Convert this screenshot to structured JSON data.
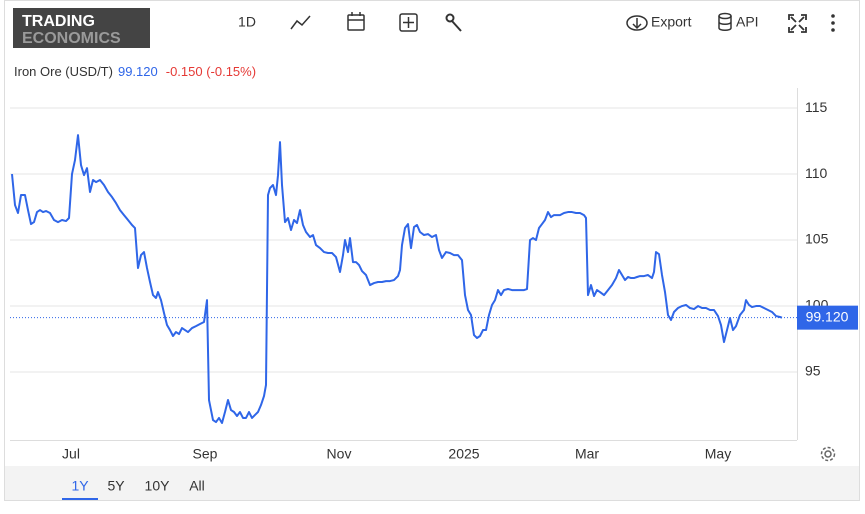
{
  "toolbar": {
    "logo_top": "TRADING",
    "logo_bottom": "ECONOMICS",
    "interval": "1D",
    "export": "Export",
    "api": "API"
  },
  "ranges": [
    "1Y",
    "5Y",
    "10Y",
    "All"
  ],
  "header": {
    "name": "Iron Ore (USD/T)",
    "price": "99.120",
    "change": "-0.150 (-0.15%)"
  },
  "chart_data": {
    "type": "line",
    "color": "#2f66e8",
    "last_label": "99.120",
    "xlim": [
      0,
      393.5
    ],
    "ylim": [
      89.85,
      116.52
    ],
    "yticks": [
      95,
      100,
      105,
      110,
      115
    ],
    "grid": true,
    "xticks": [
      {
        "value": 30.5,
        "label": "Jul"
      },
      {
        "value": 97.5,
        "label": "Sep"
      },
      {
        "value": 164.5,
        "label": "Nov"
      },
      {
        "value": 227,
        "label": "2025"
      },
      {
        "value": 288.5,
        "label": "Mar"
      },
      {
        "value": 354,
        "label": "May"
      }
    ],
    "x": [
      1,
      2.5,
      4,
      5.5,
      7.5,
      9,
      10.5,
      12,
      13.5,
      15,
      16.5,
      18,
      20,
      22,
      24,
      26,
      28,
      29.5,
      31,
      32.5,
      34,
      35.5,
      37,
      38.5,
      40,
      41.5,
      43,
      45,
      47,
      49,
      51,
      53,
      55,
      57,
      59,
      61,
      62.5,
      64,
      65.5,
      67,
      68.5,
      70,
      71.5,
      73,
      74,
      75.5,
      77,
      78.5,
      80,
      81.5,
      83,
      84.5,
      86,
      87.5,
      89,
      91,
      93,
      95,
      97,
      98.5,
      99.5,
      100.5,
      101.5,
      103,
      104.5,
      106,
      107.5,
      109,
      110.5,
      112,
      113.5,
      115,
      116.5,
      118,
      119.5,
      121,
      122.5,
      124,
      125.5,
      127,
      128,
      129,
      130,
      131.5,
      133,
      134,
      135,
      136,
      137.5,
      139,
      140.5,
      142,
      143.5,
      145,
      146.5,
      148,
      150,
      151.5,
      153,
      155,
      157,
      159,
      161,
      163,
      165,
      166.5,
      167.5,
      169,
      170,
      171.5,
      173,
      174.5,
      176,
      178,
      180,
      182,
      184,
      186,
      188,
      190,
      192,
      194,
      195,
      196,
      197.5,
      199,
      200.5,
      202,
      203.5,
      205,
      207,
      209,
      211,
      213,
      214.5,
      216,
      218,
      220,
      222,
      224,
      226,
      227.5,
      229,
      230.5,
      232,
      233.5,
      235,
      236.5,
      238,
      239.5,
      241,
      242.5,
      244,
      245.5,
      247,
      249,
      251,
      253,
      255,
      257,
      258.5,
      260,
      261.5,
      263,
      264.5,
      266,
      267.5,
      269,
      270.5,
      272,
      273.5,
      275,
      277,
      279,
      281,
      283,
      285,
      287,
      288,
      289,
      290.5,
      292,
      293.5,
      295,
      297,
      299,
      301,
      303,
      304.5,
      306,
      307.5,
      309,
      310.5,
      312,
      313.5,
      315,
      317,
      319,
      321,
      322,
      323,
      324.5,
      326,
      327.5,
      329,
      330.5,
      332,
      334,
      336,
      338,
      340,
      342,
      344,
      346,
      348,
      350,
      352,
      354,
      355.5,
      357,
      358.5,
      360,
      361.5,
      363,
      365,
      367,
      368,
      369.5,
      371,
      373,
      375,
      377,
      379,
      381,
      383,
      385,
      386
    ],
    "values": [
      110,
      107.65,
      107.05,
      108.41,
      108.41,
      107.27,
      106.21,
      106.36,
      107.12,
      107.27,
      107.12,
      107.2,
      107.05,
      106.52,
      106.36,
      106.52,
      106.44,
      106.67,
      110,
      111.06,
      112.95,
      110.68,
      109.92,
      110.45,
      108.64,
      109.55,
      109.39,
      109.55,
      109.17,
      108.64,
      108.26,
      107.8,
      107.27,
      106.89,
      106.52,
      106.14,
      105.91,
      102.88,
      103.86,
      104.09,
      102.88,
      101.82,
      100.83,
      100.61,
      101.06,
      100.45,
      99.47,
      98.56,
      98.18,
      97.73,
      98.03,
      97.88,
      98.33,
      98.18,
      98.03,
      98.33,
      98.48,
      98.64,
      98.79,
      100.45,
      92.88,
      92.12,
      91.36,
      91.21,
      91.52,
      91.14,
      91.97,
      92.88,
      92.12,
      91.97,
      91.67,
      91.97,
      91.52,
      91.52,
      91.97,
      91.52,
      91.75,
      91.97,
      92.5,
      93.18,
      94.02,
      108.41,
      108.94,
      109.17,
      108.41,
      109.92,
      112.42,
      109.17,
      106.36,
      106.67,
      105.76,
      106.52,
      106.29,
      107.27,
      106.14,
      105.61,
      105.23,
      105.38,
      104.62,
      104.39,
      104.09,
      104.02,
      104.02,
      103.71,
      102.58,
      103.86,
      105,
      104.09,
      105.15,
      103.33,
      103.33,
      103.11,
      102.65,
      102.35,
      101.59,
      101.74,
      101.82,
      101.82,
      101.89,
      101.89,
      101.97,
      102.27,
      102.73,
      104.62,
      105.91,
      106.21,
      104.39,
      105.98,
      106.14,
      105.61,
      105.38,
      105.45,
      105.23,
      105.38,
      104.24,
      103.64,
      104.09,
      104.02,
      103.86,
      103.86,
      103.48,
      100.83,
      99.7,
      99.32,
      97.8,
      97.58,
      97.73,
      98.18,
      98.18,
      99.32,
      100.08,
      100.45,
      101.21,
      100.83,
      101.21,
      101.29,
      101.21,
      101.21,
      101.21,
      101.21,
      101.29,
      105,
      105.15,
      105,
      105.91,
      106.21,
      106.52,
      107.12,
      106.74,
      106.89,
      106.89,
      106.89,
      107.05,
      107.12,
      107.12,
      107.05,
      107.05,
      106.89,
      106.67,
      100.83,
      101.59,
      100.76,
      101.21,
      101.06,
      100.83,
      101.21,
      101.59,
      102.12,
      102.73,
      102.35,
      101.97,
      102.2,
      102.12,
      102.12,
      102.2,
      102.27,
      102.27,
      102.35,
      102.12,
      102.58,
      104.09,
      103.93,
      102.35,
      101.06,
      99.32,
      98.94,
      99.55,
      99.85,
      100,
      100.08,
      99.85,
      99.77,
      100,
      99.85,
      99.85,
      99.7,
      99.7,
      99.24,
      98.56,
      97.27,
      98.18,
      99.09,
      98.18,
      98.48,
      99.32,
      99.7,
      100.45,
      100.08,
      99.92,
      100,
      100,
      99.85,
      99.7,
      99.55,
      99.24,
      99.17,
      99.12
    ]
  }
}
